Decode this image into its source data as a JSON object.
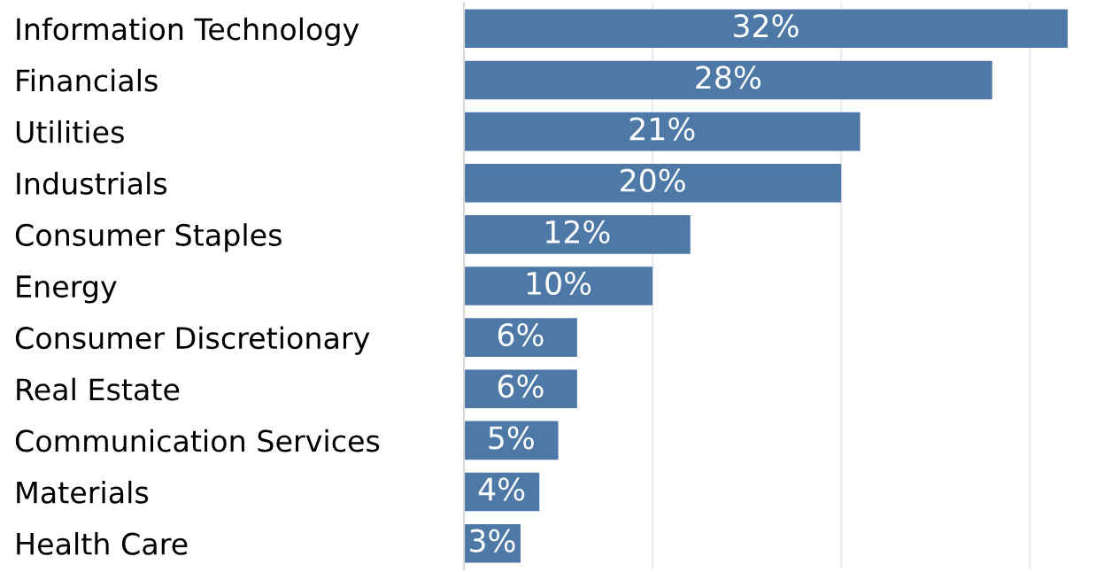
{
  "chart_data": {
    "type": "bar",
    "orientation": "horizontal",
    "categories": [
      "Information Technology",
      "Financials",
      "Utilities",
      "Industrials",
      "Consumer Staples",
      "Energy",
      "Consumer Discretionary",
      "Real Estate",
      "Communication Services",
      "Materials",
      "Health Care"
    ],
    "values": [
      32,
      28,
      21,
      20,
      12,
      10,
      6,
      6,
      5,
      4,
      3
    ],
    "value_labels": [
      "32%",
      "28%",
      "21%",
      "20%",
      "12%",
      "10%",
      "6%",
      "6%",
      "5%",
      "4%",
      "3%"
    ],
    "color": "#4e79a7",
    "xticks": [
      {
        "value": 0,
        "label": null
      },
      {
        "value": 10,
        "label": null
      },
      {
        "value": 20,
        "label": null
      },
      {
        "value": 30,
        "label": null
      }
    ],
    "tick_labels": "y",
    "grid": "x"
  }
}
